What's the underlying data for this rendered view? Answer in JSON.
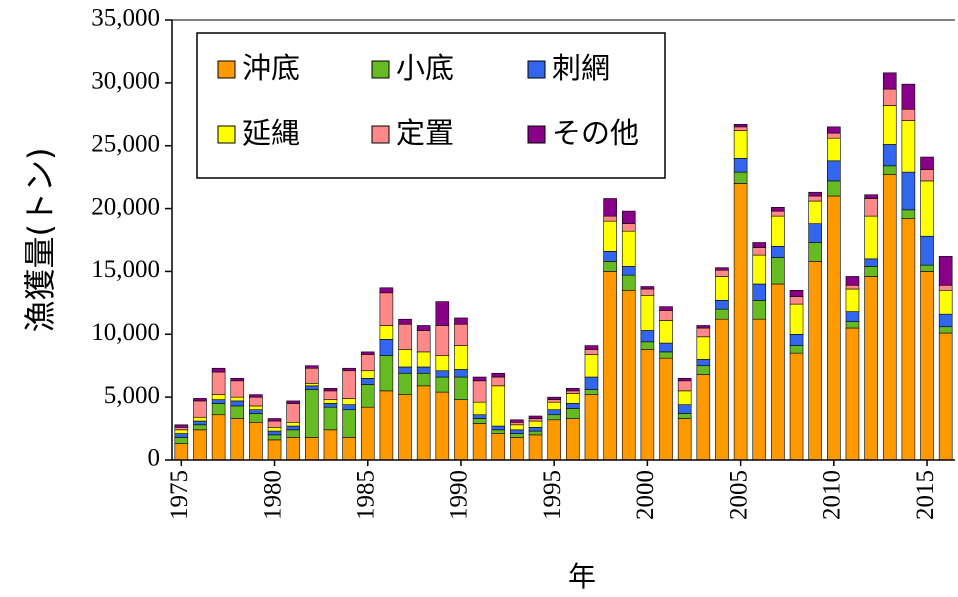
{
  "chart_data": {
    "type": "stacked_bar",
    "y_label": "漁獲量(トン)",
    "x_label": "年",
    "categories": [
      "1975",
      null,
      null,
      null,
      null,
      "1980",
      null,
      null,
      null,
      null,
      "1985",
      null,
      null,
      null,
      null,
      "1990",
      null,
      null,
      null,
      null,
      "1995",
      null,
      null,
      null,
      null,
      "2000",
      null,
      null,
      null,
      null,
      "2005",
      null,
      null,
      null,
      null,
      "2010",
      null,
      null,
      null,
      null,
      "2015",
      null
    ],
    "series": [
      {
        "name": "沖底",
        "color": "#ff9900",
        "values": [
          1300,
          2400,
          3600,
          3300,
          3000,
          1600,
          1800,
          1800,
          2400,
          1800,
          4200,
          5500,
          5200,
          5900,
          5400,
          4800,
          2900,
          2100,
          1800,
          2000,
          3200,
          3300,
          5200,
          15000,
          13500,
          8800,
          8100,
          3300,
          6800,
          11200,
          22000,
          11200,
          14000,
          8500,
          15800,
          21000,
          10500,
          14600,
          22700,
          19200,
          15000,
          10100
        ]
      },
      {
        "name": "小底",
        "color": "#66bb22",
        "values": [
          500,
          400,
          900,
          1000,
          700,
          400,
          600,
          3800,
          1800,
          2200,
          1800,
          2800,
          1700,
          1000,
          1200,
          1800,
          400,
          300,
          300,
          300,
          400,
          800,
          400,
          800,
          1200,
          600,
          500,
          400,
          700,
          800,
          900,
          1500,
          2100,
          600,
          1500,
          1200,
          500,
          800,
          700,
          700,
          500,
          500
        ]
      },
      {
        "name": "刺網",
        "color": "#3366ee",
        "values": [
          300,
          300,
          300,
          400,
          300,
          300,
          300,
          300,
          300,
          400,
          500,
          1300,
          500,
          500,
          500,
          600,
          300,
          300,
          300,
          300,
          400,
          400,
          1000,
          800,
          700,
          900,
          700,
          700,
          500,
          700,
          1100,
          1300,
          900,
          900,
          1500,
          1600,
          800,
          600,
          1700,
          3000,
          2300,
          1000
        ]
      },
      {
        "name": "延縄",
        "color": "#ffff00",
        "values": [
          300,
          300,
          400,
          300,
          300,
          300,
          300,
          200,
          300,
          500,
          600,
          1100,
          1400,
          1200,
          1200,
          1900,
          1000,
          3200,
          400,
          500,
          600,
          800,
          1800,
          2400,
          2800,
          2800,
          1800,
          1100,
          1800,
          1900,
          2200,
          2300,
          2400,
          2400,
          1800,
          1800,
          1800,
          3400,
          3100,
          4100,
          4400,
          1900
        ]
      },
      {
        "name": "定置",
        "color": "#ff8888",
        "values": [
          200,
          1300,
          1800,
          1300,
          700,
          500,
          1500,
          1200,
          700,
          2200,
          1300,
          2600,
          2000,
          1700,
          2400,
          1700,
          1700,
          700,
          200,
          200,
          200,
          200,
          400,
          400,
          600,
          500,
          800,
          800,
          700,
          500,
          300,
          600,
          400,
          600,
          400,
          400,
          300,
          1400,
          1300,
          900,
          900,
          400
        ]
      },
      {
        "name": "その他",
        "color": "#880088",
        "values": [
          200,
          200,
          300,
          200,
          200,
          200,
          200,
          200,
          200,
          200,
          200,
          400,
          400,
          400,
          1900,
          500,
          300,
          300,
          200,
          200,
          200,
          200,
          300,
          1400,
          1000,
          200,
          300,
          200,
          200,
          200,
          200,
          400,
          300,
          500,
          300,
          500,
          700,
          300,
          1300,
          2000,
          1000,
          2300
        ]
      }
    ],
    "ylim": [
      0,
      35000
    ],
    "yticks": [
      0,
      {
        "value": 5000,
        "label": "5,000"
      },
      {
        "value": 10000,
        "label": "10,000"
      },
      {
        "value": 15000,
        "label": "15,000"
      },
      {
        "value": 20000,
        "label": "20,000"
      },
      {
        "value": 25000,
        "label": "25,000"
      },
      {
        "value": 30000,
        "label": "30,000"
      },
      {
        "value": 35000,
        "label": "35,000"
      }
    ]
  }
}
